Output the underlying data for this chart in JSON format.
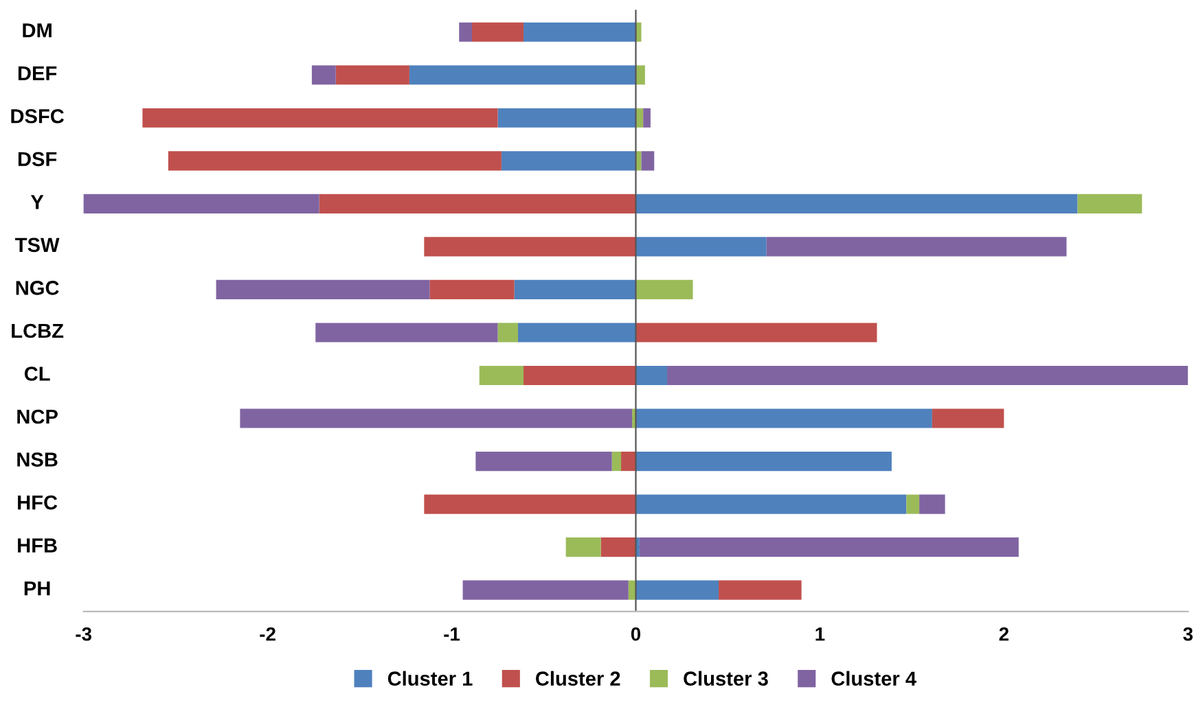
{
  "chart_data": {
    "type": "bar",
    "orientation": "horizontal",
    "stacked": true,
    "categories": [
      "DM",
      "DEF",
      "DSFC",
      "DSF",
      "Y",
      "TSW",
      "NGC",
      "LCBZ",
      "CL",
      "NCP",
      "NSB",
      "HFC",
      "HFB",
      "PH"
    ],
    "series": [
      {
        "name": "Cluster 1",
        "color": "#4f81bd",
        "values": [
          -0.61,
          -1.23,
          -0.75,
          -0.73,
          2.4,
          0.71,
          -0.66,
          -0.64,
          0.17,
          1.61,
          1.39,
          1.47,
          0.02,
          0.45
        ]
      },
      {
        "name": "Cluster 2",
        "color": "#c0504d",
        "values": [
          -0.28,
          -0.4,
          -1.93,
          -1.81,
          -1.72,
          -1.15,
          -0.46,
          1.31,
          -0.61,
          0.39,
          -0.08,
          -1.15,
          -0.19,
          0.45
        ]
      },
      {
        "name": "Cluster 3",
        "color": "#9bbb59",
        "values": [
          0.03,
          0.05,
          0.04,
          0.03,
          0.35,
          0,
          0.31,
          -0.11,
          -0.24,
          -0.02,
          -0.05,
          0.07,
          -0.19,
          -0.04
        ]
      },
      {
        "name": "Cluster 4",
        "color": "#8064a2",
        "values": [
          -0.07,
          -0.13,
          0.04,
          0.07,
          -1.29,
          1.63,
          -1.16,
          -0.99,
          2.83,
          -2.13,
          -0.74,
          0.14,
          2.06,
          -0.9
        ]
      }
    ],
    "xlim": [
      -3,
      3
    ],
    "xticks": [
      -3,
      -2,
      -1,
      0,
      1,
      2,
      3
    ],
    "legend": "bottom"
  }
}
